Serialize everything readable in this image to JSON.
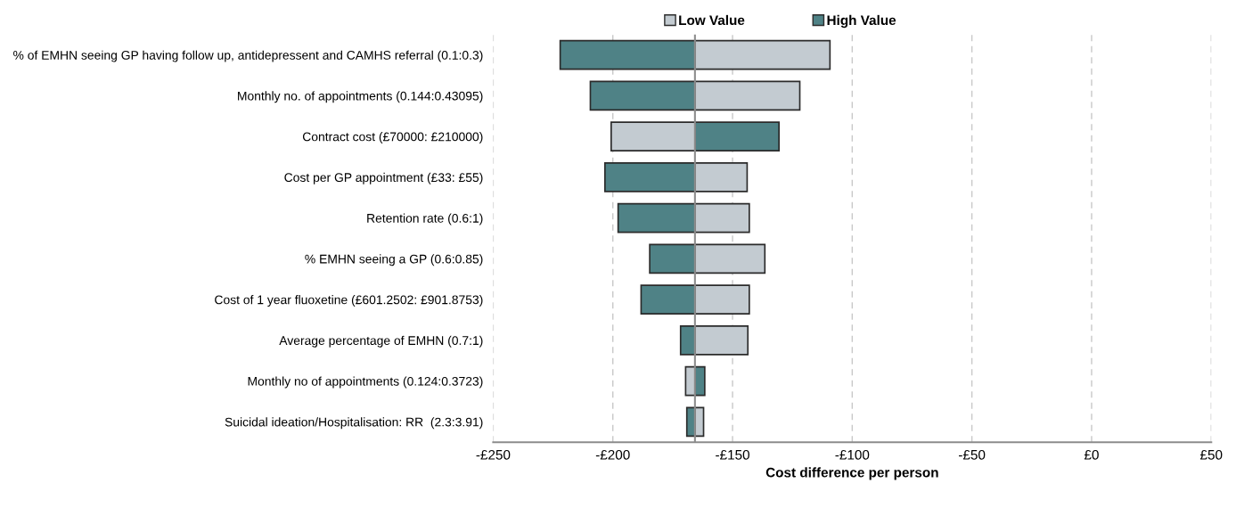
{
  "chart_data": {
    "type": "bar",
    "orientation": "horizontal",
    "xlabel": "Cost difference per person",
    "categories": [
      "% of EMHN seeing GP having follow up, antidepressent and CAMHS referral (0.1:0.3)",
      "Monthly no. of appointments (0.144:0.43095)",
      "Contract cost (£70000: £210000)",
      "Cost per GP appointment (£33: £55)",
      "Retention rate (0.6:1)",
      "% EMHN seeing a GP (0.6:0.85)",
      "Cost of 1 year fluoxetine (£601.2502: £901.8753)",
      "Average percentage of EMHN (0.7:1)",
      "Monthly no of appointments (0.124:0.3723)",
      "Suicidal ideation/Hospitalisation: RR  (2.3:3.91)"
    ],
    "series": [
      {
        "name": "Low Value",
        "color": "#c3cbd1",
        "base": [
          -165.7,
          -165.7,
          -165.7,
          -165.7,
          -165.7,
          -165.7,
          -165.7,
          -165.7,
          -165.7,
          -165.7
        ],
        "values": [
          56.4,
          43.8,
          -35.0,
          21.8,
          22.7,
          29.2,
          22.7,
          22.1,
          -3.9,
          3.6
        ]
      },
      {
        "name": "High Value",
        "color": "#4f8286",
        "base": [
          -165.7,
          -165.7,
          -165.7,
          -165.7,
          -165.7,
          -165.7,
          -165.7,
          -165.7,
          -165.7,
          -165.7
        ],
        "values": [
          -56.3,
          -43.7,
          35.1,
          -37.6,
          -32.1,
          -18.9,
          -22.5,
          -6.0,
          4.1,
          -3.4
        ]
      }
    ],
    "xlim": [
      -250,
      50
    ],
    "xticks": [
      {
        "value": -250,
        "label": "-£250"
      },
      {
        "value": -200,
        "label": "-£200"
      },
      {
        "value": -150,
        "label": "-£150"
      },
      {
        "value": -100,
        "label": "-£100"
      },
      {
        "value": -50,
        "label": "-£50"
      },
      {
        "value": 0,
        "label": "£0"
      },
      {
        "value": 50,
        "label": "£50"
      }
    ],
    "ref_lines": [
      {
        "axis": "x",
        "value": -165.7,
        "color": "#8c8c8c",
        "line_style": "solid"
      }
    ],
    "grid": "x",
    "legend": "top"
  }
}
